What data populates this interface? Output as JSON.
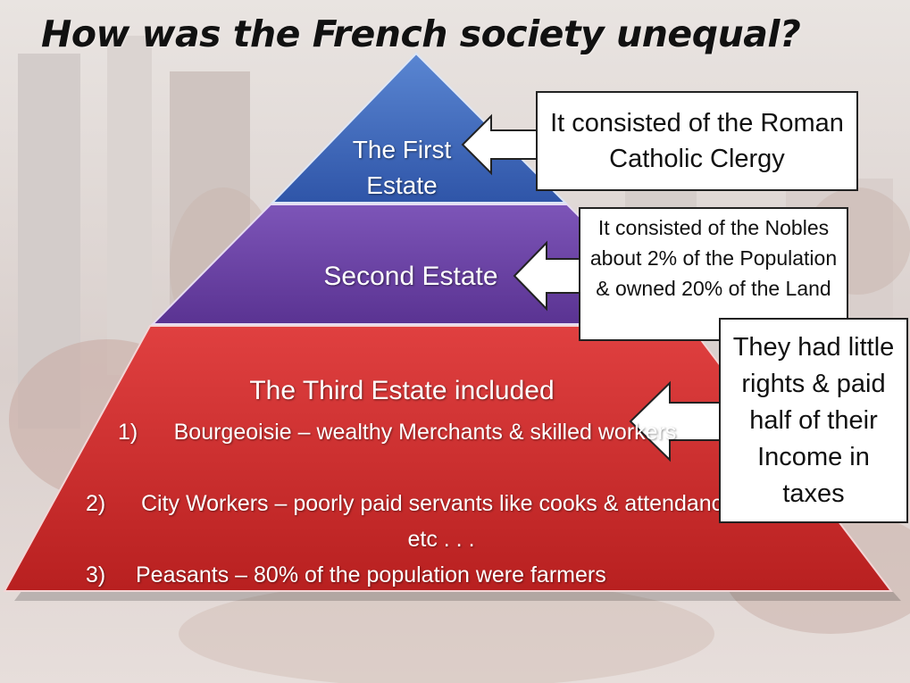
{
  "title": "How was the French society unequal?",
  "pyramid": {
    "first_estate": "The First Estate",
    "second_estate": "Second Estate",
    "third_estate_heading": "The Third Estate included",
    "third_estate_items": [
      {
        "number": "1)",
        "text": "Bourgeoisie – wealthy Merchants & skilled workers"
      },
      {
        "number": "2)",
        "text": "City Workers – poorly paid servants like cooks & attendance, etc . . ."
      },
      {
        "number": "3)",
        "text": "Peasants – 80% of the population were farmers"
      }
    ]
  },
  "callouts": {
    "first": "It consisted of the Roman Catholic Clergy",
    "second": "It consisted of the Nobles about 2% of the Population  & owned 20% of the Land",
    "third": "They had little rights & paid half of their Income in taxes"
  },
  "colors": {
    "first_estate": "#3c64b4",
    "second_estate": "#6a40a2",
    "third_estate": "#cf2f2f",
    "callout_border": "#222222"
  }
}
